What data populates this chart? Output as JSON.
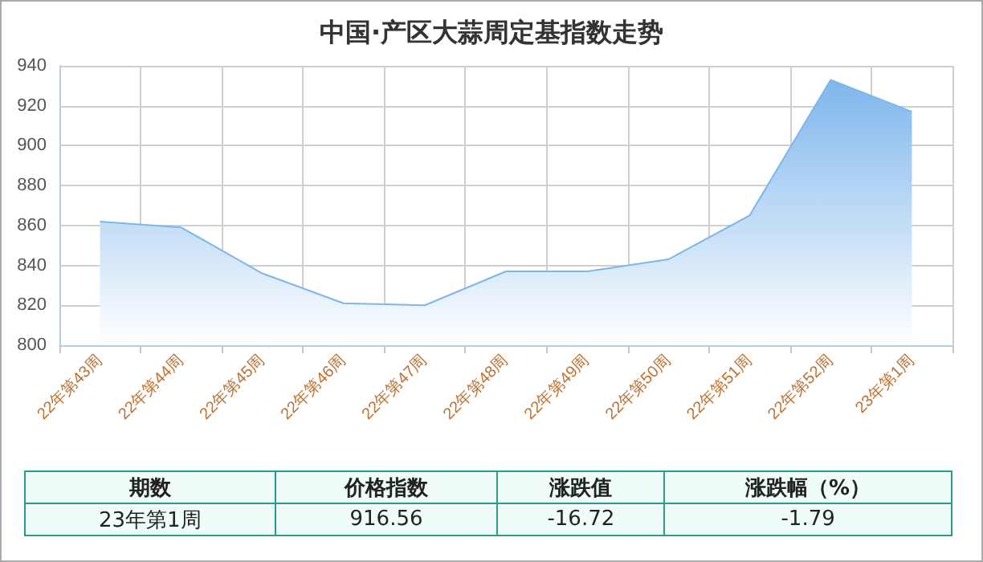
{
  "chart_data": {
    "type": "area",
    "title": "中国·产区大蒜周定基指数走势",
    "categories": [
      "22年第43周",
      "22年第44周",
      "22年第45周",
      "22年第46周",
      "22年第47周",
      "22年第48周",
      "22年第49周",
      "22年第50周",
      "22年第51周",
      "22年第52周",
      "23年第1周"
    ],
    "series": [
      {
        "color": "#7eb6ec",
        "values": [
          862,
          859,
          836,
          821,
          820,
          837,
          837,
          843,
          865,
          933,
          917
        ]
      }
    ],
    "ylim": [
      800,
      940
    ],
    "yticks": [
      800,
      820,
      840,
      860,
      880,
      900,
      920,
      940
    ],
    "grid": true,
    "marker": "none",
    "annotations": [
      "期数",
      "价格指数",
      "涨跌值",
      "涨跌幅（%）",
      "23年第1周",
      "916.56",
      "-16.72",
      "-1.79"
    ]
  }
}
